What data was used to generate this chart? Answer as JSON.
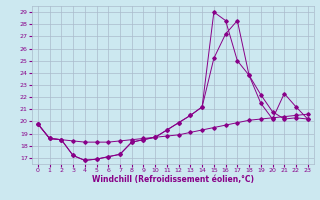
{
  "xlabel": "Windchill (Refroidissement éolien,°C)",
  "background_color": "#cce8f0",
  "grid_color": "#aabbcc",
  "line_color": "#880088",
  "xlim": [
    -0.5,
    23.5
  ],
  "ylim": [
    16.5,
    29.5
  ],
  "yticks": [
    17,
    18,
    19,
    20,
    21,
    22,
    23,
    24,
    25,
    26,
    27,
    28,
    29
  ],
  "xticks": [
    0,
    1,
    2,
    3,
    4,
    5,
    6,
    7,
    8,
    9,
    10,
    11,
    12,
    13,
    14,
    15,
    16,
    17,
    18,
    19,
    20,
    21,
    22,
    23
  ],
  "series": [
    {
      "x": [
        0,
        1,
        2,
        3,
        4,
        5,
        6,
        7,
        8,
        9,
        10,
        11,
        12,
        13,
        14,
        15,
        16,
        17,
        18,
        19,
        20,
        21,
        22,
        23
      ],
      "y": [
        19.8,
        18.6,
        18.5,
        17.2,
        16.8,
        16.9,
        17.1,
        17.3,
        18.3,
        18.5,
        18.7,
        19.3,
        19.9,
        20.5,
        21.2,
        29.0,
        28.3,
        25.0,
        23.8,
        22.2,
        20.8,
        20.2,
        20.3,
        20.2
      ]
    },
    {
      "x": [
        0,
        1,
        2,
        3,
        4,
        5,
        6,
        7,
        8,
        9,
        10,
        11,
        12,
        13,
        14,
        15,
        16,
        17,
        18,
        19,
        20,
        21,
        22,
        23
      ],
      "y": [
        19.8,
        18.6,
        18.5,
        17.2,
        16.8,
        16.9,
        17.1,
        17.3,
        18.3,
        18.5,
        18.7,
        19.3,
        19.9,
        20.5,
        21.2,
        25.2,
        27.2,
        28.3,
        23.8,
        21.5,
        20.2,
        22.3,
        21.2,
        20.2
      ]
    },
    {
      "x": [
        0,
        1,
        2,
        3,
        4,
        5,
        6,
        7,
        8,
        9,
        10,
        11,
        12,
        13,
        14,
        15,
        16,
        17,
        18,
        19,
        20,
        21,
        22,
        23
      ],
      "y": [
        19.8,
        18.6,
        18.5,
        18.4,
        18.3,
        18.3,
        18.3,
        18.4,
        18.5,
        18.6,
        18.7,
        18.8,
        18.9,
        19.1,
        19.3,
        19.5,
        19.7,
        19.9,
        20.1,
        20.2,
        20.3,
        20.4,
        20.5,
        20.6
      ]
    }
  ]
}
